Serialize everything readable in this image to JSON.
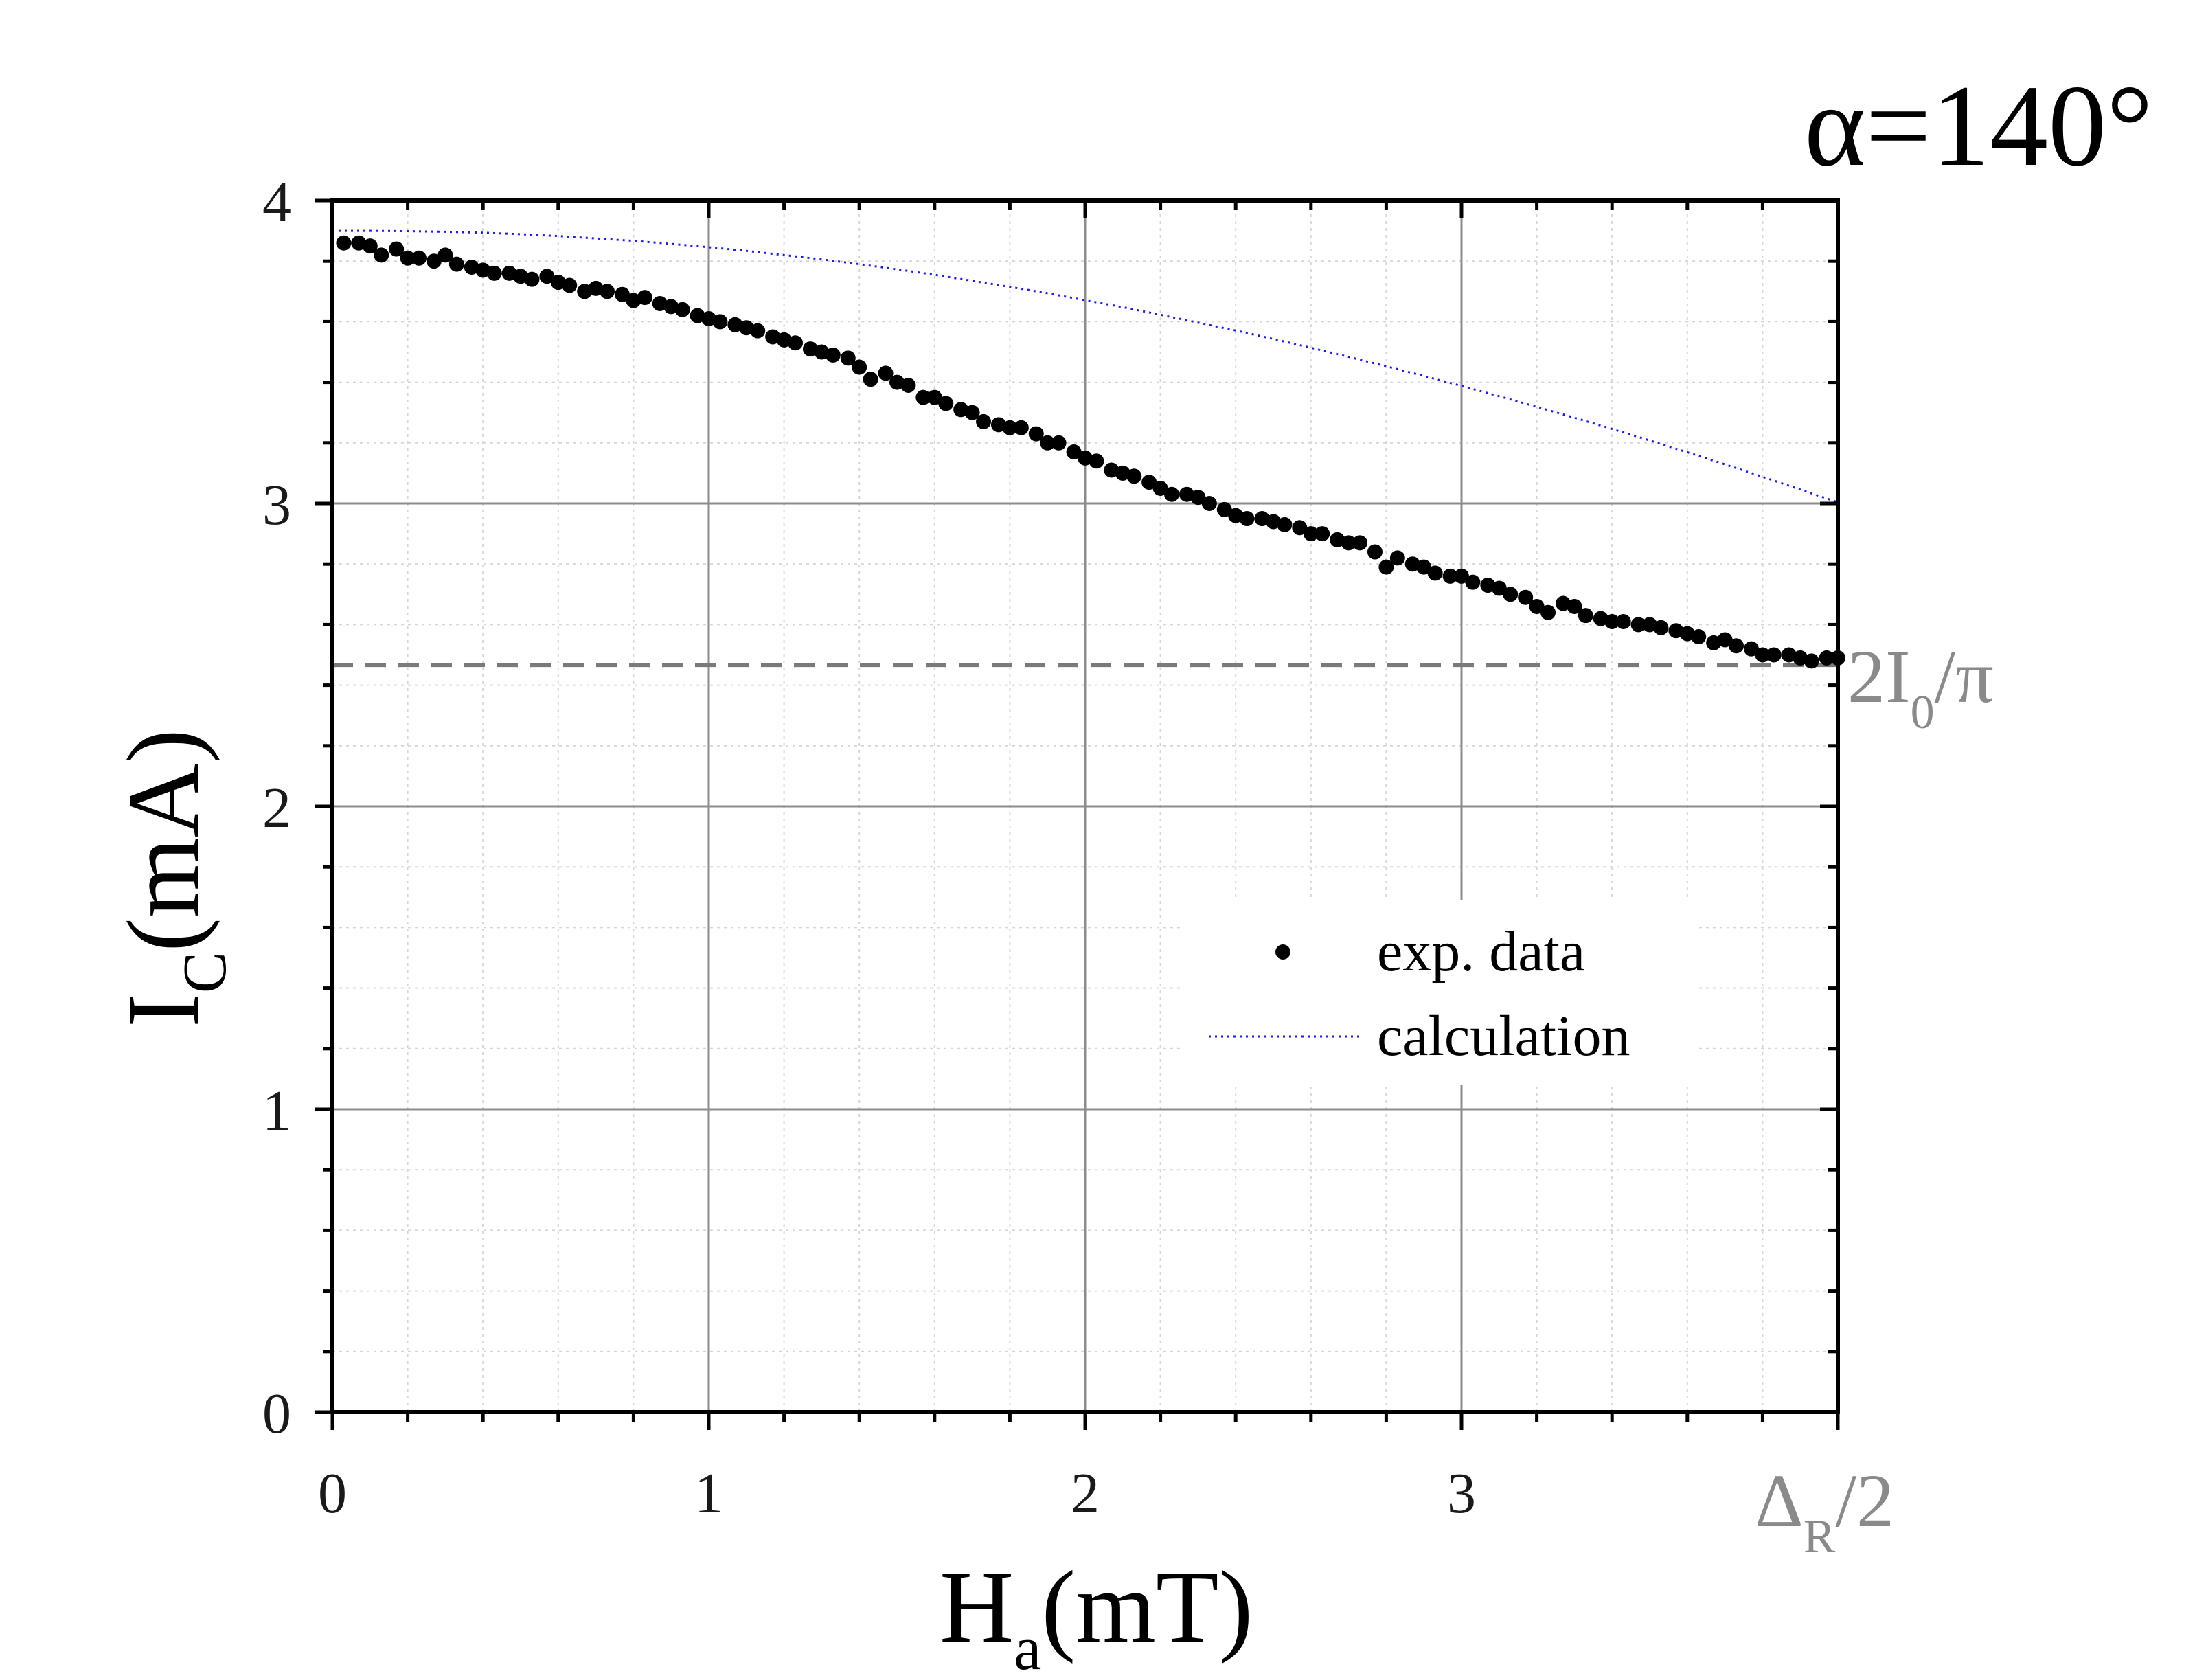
{
  "chart_data": {
    "type": "scatter",
    "title": "α=140°",
    "xlabel": {
      "main": "H",
      "sub": "a",
      "unit": "(mT)"
    },
    "ylabel": {
      "main": "I",
      "sub": "C",
      "unit": "(mA)"
    },
    "xlim": [
      0,
      4
    ],
    "ylim": [
      0,
      4
    ],
    "xticks": [
      "0",
      "1",
      "2",
      "3"
    ],
    "yticks": [
      "0",
      "1",
      "2",
      "3",
      "4"
    ],
    "x_end_label": {
      "main": "Δ",
      "sub": "R",
      "rest": "/2"
    },
    "reference_line": {
      "value": 2.4669,
      "label_main": "2I",
      "label_sub": "0",
      "label_rest": "/π"
    },
    "grid": true,
    "legend": {
      "position": "center-right",
      "entries": [
        "exp. data",
        "calculation"
      ]
    },
    "series": [
      {
        "name": "exp. data",
        "style": "markers",
        "color": "#000000",
        "x": [
          0.03,
          0.07,
          0.1,
          0.13,
          0.17,
          0.2,
          0.23,
          0.27,
          0.3,
          0.33,
          0.37,
          0.4,
          0.43,
          0.47,
          0.5,
          0.53,
          0.57,
          0.6,
          0.63,
          0.67,
          0.7,
          0.73,
          0.77,
          0.8,
          0.83,
          0.87,
          0.9,
          0.93,
          0.97,
          1.0,
          1.03,
          1.07,
          1.1,
          1.13,
          1.17,
          1.2,
          1.23,
          1.27,
          1.3,
          1.33,
          1.37,
          1.4,
          1.43,
          1.47,
          1.5,
          1.53,
          1.57,
          1.6,
          1.63,
          1.67,
          1.7,
          1.73,
          1.77,
          1.8,
          1.83,
          1.87,
          1.9,
          1.93,
          1.97,
          2.0,
          2.03,
          2.07,
          2.1,
          2.13,
          2.17,
          2.2,
          2.23,
          2.27,
          2.3,
          2.33,
          2.37,
          2.4,
          2.43,
          2.47,
          2.5,
          2.53,
          2.57,
          2.6,
          2.63,
          2.67,
          2.7,
          2.73,
          2.77,
          2.8,
          2.83,
          2.87,
          2.9,
          2.93,
          2.97,
          3.0,
          3.03,
          3.07,
          3.1,
          3.13,
          3.17,
          3.2,
          3.23,
          3.27,
          3.3,
          3.33,
          3.37,
          3.4,
          3.43,
          3.47,
          3.5,
          3.53,
          3.57,
          3.6,
          3.63,
          3.67,
          3.7,
          3.73,
          3.77,
          3.8,
          3.83,
          3.87,
          3.9,
          3.93,
          3.97,
          4.0
        ],
        "y": [
          3.86,
          3.86,
          3.85,
          3.82,
          3.84,
          3.81,
          3.81,
          3.8,
          3.82,
          3.79,
          3.78,
          3.77,
          3.76,
          3.76,
          3.75,
          3.74,
          3.75,
          3.73,
          3.72,
          3.7,
          3.71,
          3.7,
          3.69,
          3.67,
          3.68,
          3.66,
          3.65,
          3.64,
          3.62,
          3.61,
          3.6,
          3.59,
          3.58,
          3.57,
          3.55,
          3.54,
          3.53,
          3.51,
          3.5,
          3.49,
          3.48,
          3.45,
          3.41,
          3.43,
          3.4,
          3.39,
          3.35,
          3.35,
          3.33,
          3.31,
          3.3,
          3.27,
          3.26,
          3.25,
          3.25,
          3.23,
          3.2,
          3.2,
          3.17,
          3.15,
          3.14,
          3.11,
          3.1,
          3.09,
          3.07,
          3.05,
          3.03,
          3.03,
          3.02,
          3.0,
          2.98,
          2.96,
          2.95,
          2.95,
          2.94,
          2.93,
          2.92,
          2.9,
          2.9,
          2.88,
          2.87,
          2.87,
          2.84,
          2.79,
          2.82,
          2.8,
          2.79,
          2.77,
          2.76,
          2.76,
          2.74,
          2.73,
          2.72,
          2.7,
          2.69,
          2.66,
          2.64,
          2.67,
          2.66,
          2.63,
          2.62,
          2.61,
          2.61,
          2.6,
          2.6,
          2.59,
          2.58,
          2.57,
          2.56,
          2.54,
          2.55,
          2.53,
          2.52,
          2.5,
          2.5,
          2.5,
          2.49,
          2.48,
          2.49,
          2.49
        ]
      },
      {
        "name": "calculation",
        "style": "dotted-line",
        "color": "#1a1aff",
        "x": [
          0,
          0.1,
          0.2,
          0.3,
          0.4,
          0.5,
          0.6,
          0.7,
          0.8,
          0.9,
          1.0,
          1.1,
          1.2,
          1.3,
          1.4,
          1.5,
          1.6,
          1.7,
          1.8,
          1.9,
          2.0,
          2.1,
          2.2,
          2.3,
          2.4,
          2.5,
          2.6,
          2.7,
          2.8,
          2.9,
          3.0,
          3.1,
          3.2,
          3.3,
          3.4,
          3.5,
          3.6,
          3.7,
          3.8,
          3.9,
          4.0
        ],
        "y": [
          3.9,
          3.9,
          3.899,
          3.897,
          3.894,
          3.889,
          3.883,
          3.875,
          3.867,
          3.857,
          3.846,
          3.834,
          3.82,
          3.806,
          3.79,
          3.773,
          3.755,
          3.735,
          3.715,
          3.694,
          3.671,
          3.648,
          3.623,
          3.597,
          3.571,
          3.543,
          3.514,
          3.484,
          3.453,
          3.421,
          3.388,
          3.354,
          3.319,
          3.283,
          3.246,
          3.208,
          3.169,
          3.129,
          3.088,
          3.046,
          3.004
        ]
      }
    ]
  }
}
